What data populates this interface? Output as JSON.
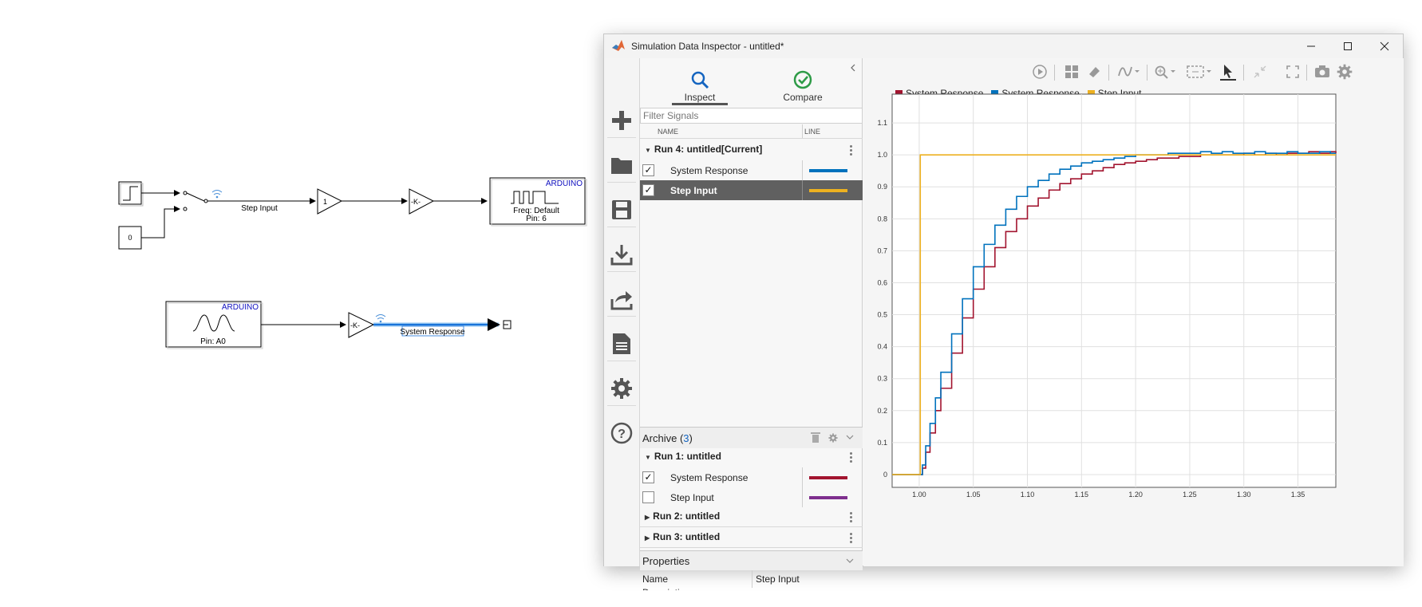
{
  "window": {
    "title": "Simulation Data Inspector - untitled*",
    "controls": [
      "minimize",
      "maximize",
      "close"
    ]
  },
  "simulink": {
    "step_input_label": "Step Input",
    "constant_value": "0",
    "gain_one": "1",
    "gain_k": "-K-",
    "pwm_block": {
      "header": "ARDUINO",
      "line1": "Freq: Default",
      "line2": "Pin: 6"
    },
    "analog_block": {
      "header": "ARDUINO",
      "line1": "Pin: A0"
    },
    "gain_k2": "-K-",
    "system_response_label": "System Response"
  },
  "tabs": {
    "inspect": "Inspect",
    "compare": "Compare"
  },
  "filter": {
    "placeholder": "Filter Signals"
  },
  "columns": {
    "name": "NAME",
    "line": "LINE"
  },
  "current_run": {
    "title": "Run 4: untitled[Current]",
    "signals": [
      {
        "name": "System Response",
        "checked": true,
        "color": "#0072bd",
        "selected": false
      },
      {
        "name": "Step Input",
        "checked": true,
        "color": "#edb120",
        "selected": true
      }
    ]
  },
  "archive": {
    "label": "Archive (",
    "count": "3",
    "close": ")",
    "runs": [
      {
        "title": "Run 1: untitled",
        "signals": [
          {
            "name": "System Response",
            "checked": true,
            "color": "#a2142f"
          },
          {
            "name": "Step Input",
            "checked": false,
            "color": "#7e2f8e"
          }
        ]
      },
      {
        "title": "Run 2: untitled"
      },
      {
        "title": "Run 3: untitled"
      }
    ]
  },
  "properties": {
    "header": "Properties",
    "rows": [
      {
        "key": "Name",
        "value": "Step Input"
      },
      {
        "key": "Description",
        "value": ""
      }
    ]
  },
  "rail_icons": [
    "plus-icon",
    "folder-icon",
    "save-icon",
    "download-icon",
    "share-icon",
    "report-icon",
    "gear-icon",
    "help-icon"
  ],
  "toolbar_icons": [
    "play-icon",
    "layout-icon",
    "eraser-icon",
    "signal-style-icon",
    "zoom-icon",
    "fit-icon",
    "cursor-icon",
    "collapse-icon",
    "fullscreen-icon",
    "camera-icon",
    "settings-icon"
  ],
  "chart_data": {
    "type": "line",
    "title": "",
    "xlabel": "",
    "ylabel": "",
    "xlim": [
      0.975,
      1.385
    ],
    "ylim": [
      -0.04,
      1.19
    ],
    "x_ticks": [
      "1.00",
      "1.05",
      "1.10",
      "1.15",
      "1.20",
      "1.25",
      "1.30",
      "1.35"
    ],
    "y_ticks": [
      "0",
      "0.1",
      "0.2",
      "0.3",
      "0.4",
      "0.5",
      "0.6",
      "0.7",
      "0.8",
      "0.9",
      "1.0",
      "1.1"
    ],
    "grid": true,
    "legend_position": "top-left",
    "series": [
      {
        "name": "System Response",
        "color": "#a2142f",
        "style": "step",
        "x": [
          0.975,
          1.001,
          1.003,
          1.006,
          1.01,
          1.015,
          1.02,
          1.03,
          1.04,
          1.05,
          1.06,
          1.07,
          1.08,
          1.09,
          1.1,
          1.11,
          1.12,
          1.13,
          1.14,
          1.15,
          1.16,
          1.17,
          1.18,
          1.19,
          1.2,
          1.21,
          1.22,
          1.23,
          1.24,
          1.25,
          1.26,
          1.27,
          1.28,
          1.29,
          1.3,
          1.31,
          1.32,
          1.33,
          1.34,
          1.35,
          1.36,
          1.37,
          1.38,
          1.385
        ],
        "y": [
          0,
          0,
          0.02,
          0.07,
          0.13,
          0.2,
          0.27,
          0.38,
          0.49,
          0.58,
          0.65,
          0.71,
          0.76,
          0.8,
          0.84,
          0.865,
          0.89,
          0.91,
          0.925,
          0.94,
          0.95,
          0.96,
          0.97,
          0.975,
          0.98,
          0.985,
          0.99,
          0.99,
          0.995,
          0.995,
          1.0,
          1.0,
          1.0,
          1.0,
          1.005,
          1.0,
          1.005,
          1.0,
          1.005,
          1.005,
          1.01,
          1.005,
          1.01,
          1.005
        ]
      },
      {
        "name": "System Response",
        "color": "#0072bd",
        "style": "step",
        "x": [
          0.975,
          1.001,
          1.003,
          1.006,
          1.01,
          1.015,
          1.02,
          1.03,
          1.04,
          1.05,
          1.06,
          1.07,
          1.08,
          1.09,
          1.1,
          1.11,
          1.12,
          1.13,
          1.14,
          1.15,
          1.16,
          1.17,
          1.18,
          1.19,
          1.2,
          1.21,
          1.22,
          1.23,
          1.24,
          1.25,
          1.26,
          1.27,
          1.28,
          1.29,
          1.3,
          1.31,
          1.32,
          1.33,
          1.34,
          1.35,
          1.36,
          1.37,
          1.38,
          1.385
        ],
        "y": [
          0,
          0,
          0.03,
          0.09,
          0.16,
          0.24,
          0.32,
          0.44,
          0.55,
          0.65,
          0.72,
          0.78,
          0.83,
          0.87,
          0.9,
          0.92,
          0.94,
          0.955,
          0.965,
          0.975,
          0.98,
          0.985,
          0.99,
          0.995,
          1.0,
          1.0,
          1.0,
          1.005,
          1.005,
          1.005,
          1.01,
          1.005,
          1.01,
          1.005,
          1.005,
          1.01,
          1.005,
          1.005,
          1.01,
          1.005,
          1.005,
          1.01,
          1.005,
          1.005
        ]
      },
      {
        "name": "Step Input",
        "color": "#edb120",
        "style": "step",
        "x": [
          0.975,
          1.0,
          1.001,
          1.385
        ],
        "y": [
          0,
          0,
          1,
          1
        ]
      }
    ]
  }
}
